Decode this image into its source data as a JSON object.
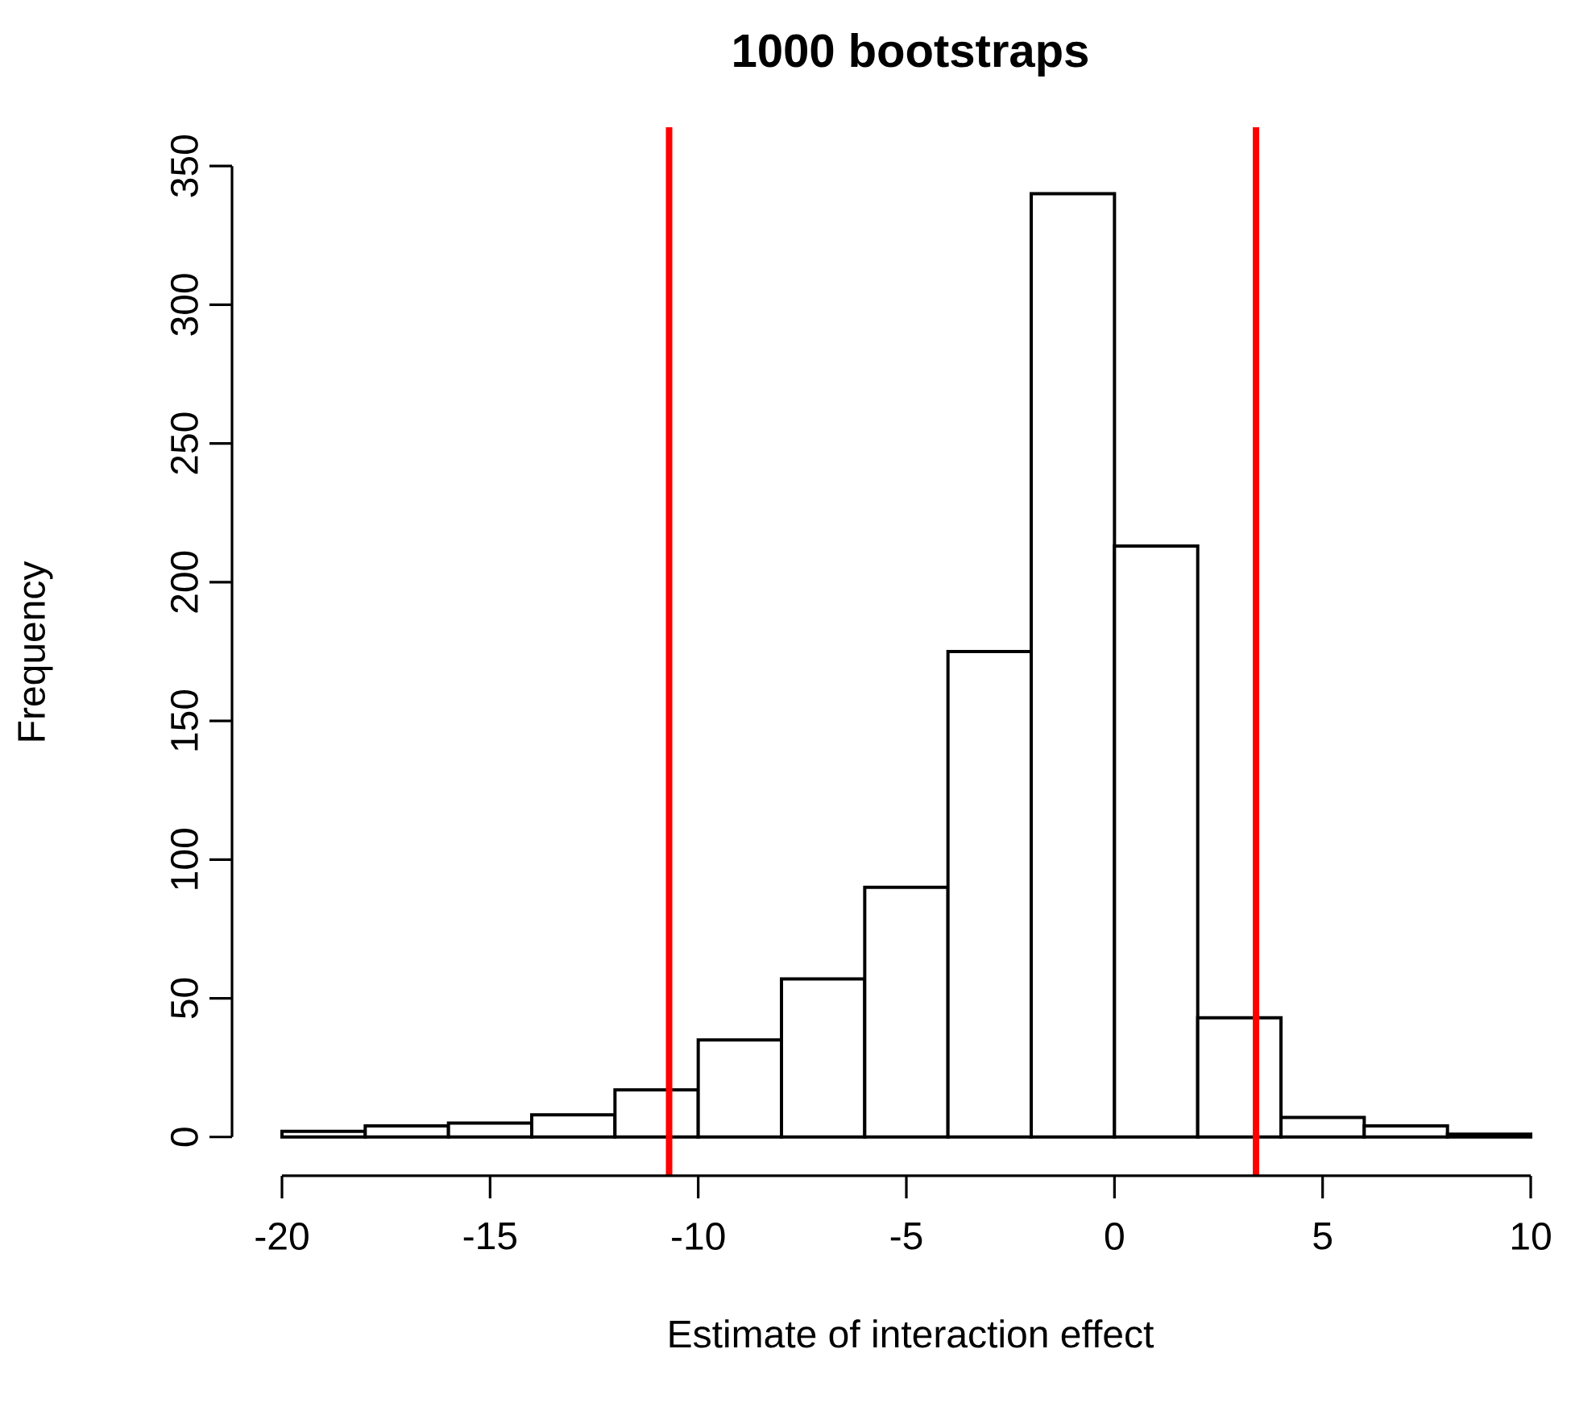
{
  "chart_data": {
    "type": "histogram",
    "title": "1000 bootstraps",
    "xlabel": "Estimate of interaction effect",
    "ylabel": "Frequency",
    "bins": [
      -20,
      -18,
      -16,
      -14,
      -12,
      -10,
      -8,
      -6,
      -4,
      -2,
      0,
      2,
      4,
      6,
      8,
      10
    ],
    "values": [
      2,
      4,
      5,
      8,
      17,
      35,
      57,
      90,
      175,
      340,
      213,
      43,
      7,
      4,
      1
    ],
    "color": "#ffffff",
    "xlim": [
      -20,
      10
    ],
    "ylim": [
      0,
      350
    ],
    "xticks": [
      -20,
      -15,
      -10,
      -5,
      0,
      5,
      10
    ],
    "yticks": [
      0,
      50,
      100,
      150,
      200,
      250,
      300,
      350
    ],
    "ref_lines": [
      {
        "axis": "x",
        "value": -10.7,
        "color": "#ff0000"
      },
      {
        "axis": "x",
        "value": 3.4,
        "color": "#ff0000"
      }
    ]
  }
}
